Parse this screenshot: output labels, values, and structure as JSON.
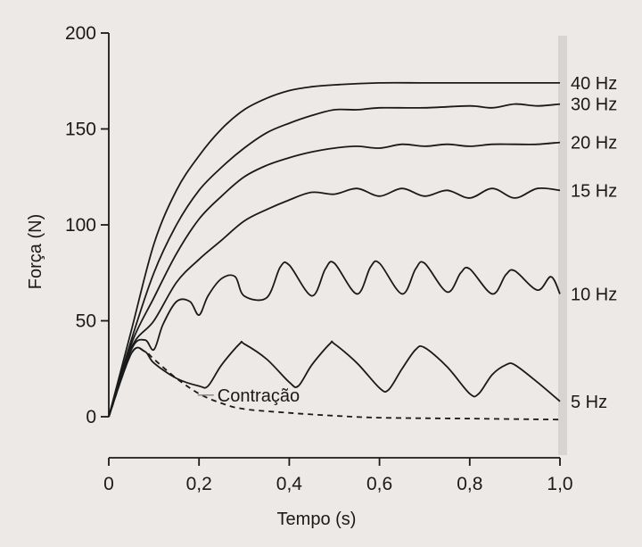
{
  "chart_data": {
    "type": "line",
    "xlabel": "Tempo (s)",
    "ylabel": "Força (N)",
    "xlim": [
      0,
      1.0
    ],
    "ylim": [
      0,
      200
    ],
    "x_ticks": [
      "0",
      "0,2",
      "0,4",
      "0,6",
      "0,8",
      "1,0"
    ],
    "y_ticks": [
      "0",
      "50",
      "100",
      "150",
      "200"
    ],
    "grid": false,
    "series": [
      {
        "name": "40 Hz",
        "x": [
          0,
          0.05,
          0.1,
          0.15,
          0.2,
          0.25,
          0.3,
          0.35,
          0.4,
          0.45,
          0.5,
          0.6,
          0.7,
          0.8,
          0.9,
          1.0
        ],
        "y": [
          0,
          45,
          90,
          118,
          136,
          150,
          160,
          166,
          170,
          172,
          173,
          174,
          174,
          174,
          174,
          174
        ]
      },
      {
        "name": "30 Hz",
        "x": [
          0,
          0.05,
          0.1,
          0.15,
          0.2,
          0.25,
          0.3,
          0.35,
          0.4,
          0.45,
          0.5,
          0.55,
          0.6,
          0.7,
          0.8,
          0.85,
          0.9,
          0.95,
          1.0
        ],
        "y": [
          0,
          40,
          75,
          100,
          118,
          130,
          140,
          148,
          153,
          157,
          160,
          160,
          161,
          161,
          162,
          161,
          163,
          162,
          163
        ]
      },
      {
        "name": "20 Hz",
        "x": [
          0,
          0.05,
          0.1,
          0.15,
          0.2,
          0.25,
          0.3,
          0.35,
          0.4,
          0.45,
          0.5,
          0.55,
          0.6,
          0.65,
          0.7,
          0.75,
          0.8,
          0.85,
          0.9,
          0.95,
          1.0
        ],
        "y": [
          0,
          38,
          62,
          85,
          103,
          115,
          125,
          131,
          135,
          138,
          140,
          141,
          140,
          142,
          141,
          142,
          141,
          142,
          142,
          142,
          143
        ]
      },
      {
        "name": "15 Hz",
        "x": [
          0,
          0.05,
          0.1,
          0.15,
          0.2,
          0.25,
          0.3,
          0.35,
          0.4,
          0.45,
          0.5,
          0.55,
          0.6,
          0.65,
          0.7,
          0.75,
          0.8,
          0.85,
          0.9,
          0.95,
          1.0
        ],
        "y": [
          0,
          36,
          50,
          70,
          82,
          92,
          102,
          108,
          113,
          117,
          116,
          119,
          115,
          119,
          115,
          118,
          114,
          119,
          114,
          119,
          118
        ]
      },
      {
        "name": "10 Hz",
        "x": [
          0,
          0.05,
          0.08,
          0.1,
          0.12,
          0.15,
          0.18,
          0.2,
          0.22,
          0.25,
          0.28,
          0.3,
          0.35,
          0.38,
          0.4,
          0.45,
          0.48,
          0.5,
          0.55,
          0.58,
          0.6,
          0.65,
          0.68,
          0.7,
          0.75,
          0.78,
          0.8,
          0.85,
          0.88,
          0.9,
          0.95,
          0.98,
          1.0
        ],
        "y": [
          0,
          35,
          40,
          35,
          48,
          60,
          60,
          53,
          63,
          72,
          73,
          63,
          62,
          78,
          79,
          63,
          77,
          80,
          64,
          78,
          80,
          64,
          77,
          80,
          65,
          75,
          77,
          64,
          74,
          76,
          66,
          73,
          64
        ]
      },
      {
        "name": "5 Hz",
        "x": [
          0,
          0.05,
          0.08,
          0.1,
          0.15,
          0.2,
          0.22,
          0.25,
          0.29,
          0.3,
          0.35,
          0.4,
          0.42,
          0.45,
          0.49,
          0.5,
          0.55,
          0.6,
          0.62,
          0.65,
          0.68,
          0.7,
          0.75,
          0.8,
          0.82,
          0.85,
          0.88,
          0.9,
          0.95,
          1.0
        ],
        "y": [
          0,
          33,
          34,
          28,
          20,
          16,
          16,
          27,
          38,
          38,
          30,
          18,
          16,
          27,
          38,
          38,
          28,
          15,
          14,
          25,
          35,
          36,
          26,
          12,
          12,
          22,
          27,
          27,
          18,
          8
        ]
      },
      {
        "name": "Contração",
        "style": "dashed",
        "x": [
          0,
          0.05,
          0.08,
          0.1,
          0.15,
          0.2,
          0.25,
          0.3,
          0.4,
          0.5,
          0.6,
          0.8,
          1.0
        ],
        "y": [
          0,
          33,
          34,
          30,
          20,
          12,
          7,
          4,
          2,
          0.5,
          -0.5,
          -1,
          -1.5
        ]
      }
    ],
    "annotations": [
      {
        "text": "Contração",
        "x": 0.3,
        "y": 8
      }
    ]
  }
}
